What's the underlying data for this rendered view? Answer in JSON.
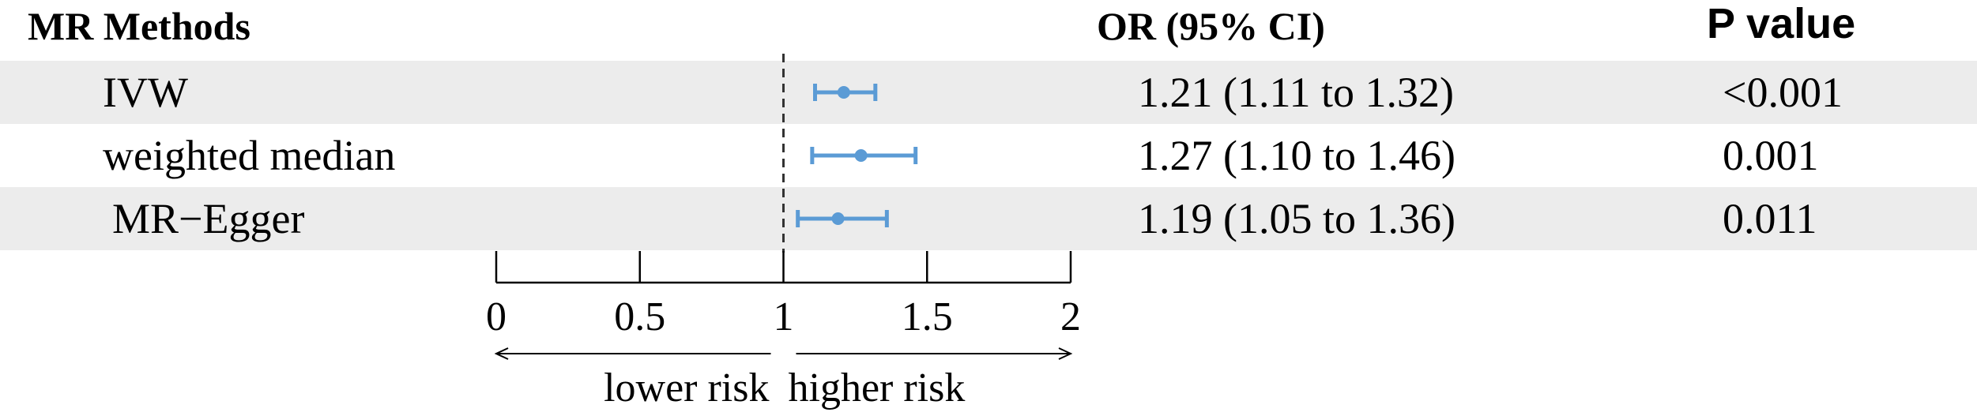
{
  "header": {
    "method_col": "MR Methods",
    "or_col": "OR (95% CI)",
    "p_col": "P value"
  },
  "chart_data": {
    "type": "forest",
    "title": "",
    "xlabel": "",
    "xlim": [
      0,
      2
    ],
    "ticks": [
      0,
      0.5,
      1,
      1.5,
      2
    ],
    "tick_labels": [
      "0",
      "0.5",
      "1",
      "1.5",
      "2"
    ],
    "reference_line": 1,
    "direction_labels": {
      "left": "lower risk",
      "right": "higher risk"
    },
    "marker_color": "#5b9bd5",
    "stripe_color": "#ececec",
    "rows": [
      {
        "method": "IVW",
        "or": 1.21,
        "lower": 1.11,
        "upper": 1.32,
        "or_text": "1.21 (1.11 to 1.32)",
        "p": "<0.001",
        "shaded": true
      },
      {
        "method": "weighted median",
        "or": 1.27,
        "lower": 1.1,
        "upper": 1.46,
        "or_text": "1.27 (1.10 to 1.46)",
        "p": "0.001",
        "shaded": false
      },
      {
        "method": "MR−Egger",
        "or": 1.19,
        "lower": 1.05,
        "upper": 1.36,
        "or_text": "1.19 (1.05 to 1.36)",
        "p": "0.011",
        "shaded": true
      }
    ]
  }
}
